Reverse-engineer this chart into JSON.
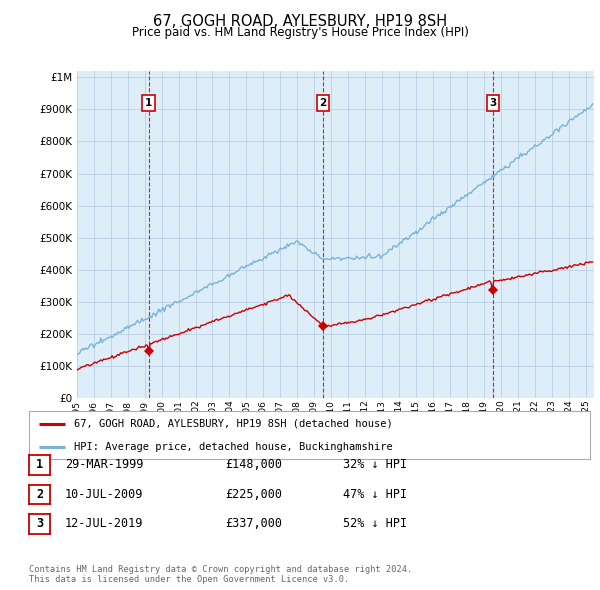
{
  "title": "67, GOGH ROAD, AYLESBURY, HP19 8SH",
  "subtitle": "Price paid vs. HM Land Registry's House Price Index (HPI)",
  "ytick_values": [
    0,
    100000,
    200000,
    300000,
    400000,
    500000,
    600000,
    700000,
    800000,
    900000,
    1000000
  ],
  "ylim": [
    0,
    1020000
  ],
  "xlim_start": 1995.0,
  "xlim_end": 2025.5,
  "hpi_color": "#7ab3d4",
  "hpi_fill_color": "#ddeef8",
  "price_color": "#cc0000",
  "dashed_color": "#cc0000",
  "transaction_dates": [
    1999.23,
    2009.52,
    2019.53
  ],
  "transaction_prices": [
    148000,
    225000,
    337000
  ],
  "transaction_labels": [
    "1",
    "2",
    "3"
  ],
  "top_marker_y": 920000,
  "legend_label_price": "67, GOGH ROAD, AYLESBURY, HP19 8SH (detached house)",
  "legend_label_hpi": "HPI: Average price, detached house, Buckinghamshire",
  "table_rows": [
    [
      "1",
      "29-MAR-1999",
      "£148,000",
      "32% ↓ HPI"
    ],
    [
      "2",
      "10-JUL-2009",
      "£225,000",
      "47% ↓ HPI"
    ],
    [
      "3",
      "12-JUL-2019",
      "£337,000",
      "52% ↓ HPI"
    ]
  ],
  "footnote1": "Contains HM Land Registry data © Crown copyright and database right 2024.",
  "footnote2": "This data is licensed under the Open Government Licence v3.0.",
  "background_color": "#ffffff",
  "plot_bg_color": "#ddeef8",
  "grid_color": "#b8d0e8"
}
